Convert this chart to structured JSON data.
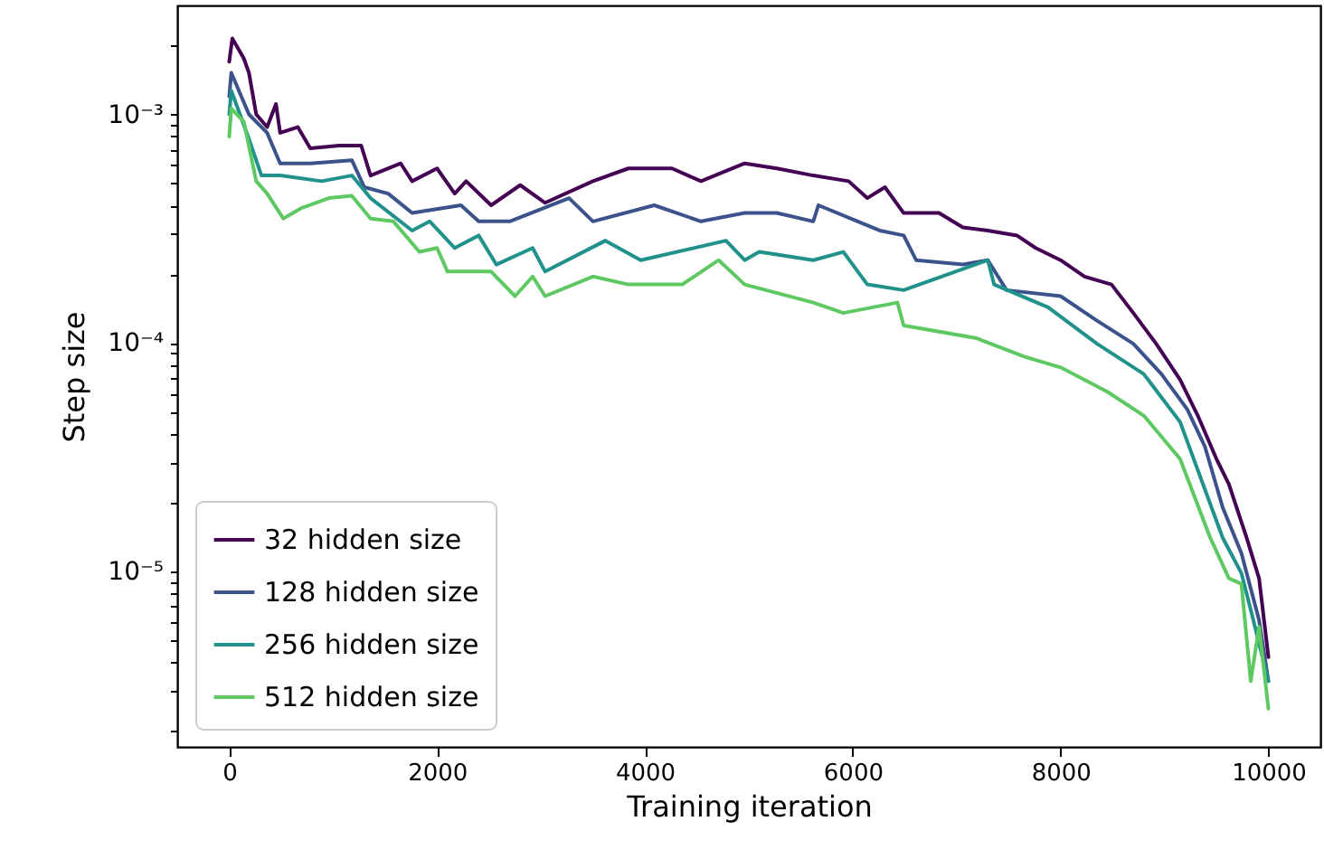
{
  "chart_data": {
    "type": "line",
    "xlabel": "Training iteration",
    "ylabel": "Step size",
    "log": "y",
    "grid": false,
    "legend": "bottom left",
    "line_style": "solid",
    "marker": "none",
    "xlim": [
      -500,
      10500
    ],
    "xticks": [
      0,
      2000,
      4000,
      6000,
      8000,
      10000
    ],
    "ylim": [
      1.7e-06,
      0.003
    ],
    "yticks": [
      {
        "value": 2e-06,
        "label": null
      },
      {
        "value": 3e-06,
        "label": null
      },
      {
        "value": 4e-06,
        "label": null
      },
      {
        "value": 5e-06,
        "label": null
      },
      {
        "value": 6e-06,
        "label": null
      },
      {
        "value": 7e-06,
        "label": null
      },
      {
        "value": 8e-06,
        "label": null
      },
      {
        "value": 9e-06,
        "label": null
      },
      {
        "value": 1e-05,
        "label": "10⁻⁵"
      },
      {
        "value": 2e-05,
        "label": null
      },
      {
        "value": 3e-05,
        "label": null
      },
      {
        "value": 4e-05,
        "label": null
      },
      {
        "value": 5e-05,
        "label": null
      },
      {
        "value": 6e-05,
        "label": null
      },
      {
        "value": 7e-05,
        "label": null
      },
      {
        "value": 8e-05,
        "label": null
      },
      {
        "value": 9e-05,
        "label": null
      },
      {
        "value": 0.0001,
        "label": "10⁻⁴"
      },
      {
        "value": 0.0002,
        "label": null
      },
      {
        "value": 0.0003,
        "label": null
      },
      {
        "value": 0.0004,
        "label": null
      },
      {
        "value": 0.0005,
        "label": null
      },
      {
        "value": 0.0006,
        "label": null
      },
      {
        "value": 0.0007,
        "label": null
      },
      {
        "value": 0.0008,
        "label": null
      },
      {
        "value": 0.0009,
        "label": null
      },
      {
        "value": 0.001,
        "label": "10⁻³"
      },
      {
        "value": 0.002,
        "label": null
      }
    ],
    "series": [
      {
        "name": "32 hidden size",
        "color": "#440154",
        "x": [
          0,
          30,
          140,
          190,
          260,
          365,
          450,
          490,
          660,
          780,
          1060,
          1270,
          1360,
          1650,
          1760,
          2000,
          2170,
          2280,
          2520,
          2800,
          3040,
          3500,
          3840,
          4260,
          4540,
          4960,
          5270,
          5620,
          5960,
          6140,
          6310,
          6490,
          6830,
          7060,
          7300,
          7580,
          7760,
          8000,
          8230,
          8490,
          8700,
          8920,
          9150,
          9320,
          9500,
          9620,
          9790,
          9910,
          10000
        ],
        "values": [
          0.0017,
          0.00215,
          0.00176,
          0.00152,
          0.001,
          0.00088,
          0.00111,
          0.00083,
          0.00088,
          0.00071,
          0.00073,
          0.00073,
          0.00054,
          0.00061,
          0.00051,
          0.00058,
          0.00045,
          0.00051,
          0.0004,
          0.00049,
          0.00041,
          0.00051,
          0.00058,
          0.00058,
          0.00051,
          0.00061,
          0.00058,
          0.00054,
          0.00051,
          0.00043,
          0.00048,
          0.00037,
          0.00037,
          0.00032,
          0.00031,
          0.000295,
          0.00026,
          0.00023,
          0.000195,
          0.00018,
          0.000135,
          9.9e-05,
          6.9e-05,
          4.8e-05,
          3.1e-05,
          2.4e-05,
          1.4e-05,
          9.3e-06,
          4.2e-06
        ]
      },
      {
        "name": "128 hidden size",
        "color": "#3b528b",
        "x": [
          0,
          20,
          190,
          365,
          490,
          780,
          1180,
          1300,
          1530,
          1760,
          2230,
          2400,
          2700,
          3270,
          3500,
          4090,
          4540,
          4960,
          5270,
          5620,
          5670,
          6260,
          6490,
          6610,
          7060,
          7300,
          7480,
          8000,
          8350,
          8700,
          8970,
          9220,
          9390,
          9560,
          9740,
          9910,
          10000
        ],
        "values": [
          0.0012,
          0.00152,
          0.001,
          0.00083,
          0.00061,
          0.00061,
          0.00063,
          0.00048,
          0.00045,
          0.00037,
          0.0004,
          0.00034,
          0.00034,
          0.00043,
          0.00034,
          0.0004,
          0.00034,
          0.00037,
          0.00037,
          0.00034,
          0.0004,
          0.00031,
          0.000295,
          0.00023,
          0.00022,
          0.00023,
          0.00017,
          0.00016,
          0.000125,
          9.9e-05,
          7.3e-05,
          5.1e-05,
          3.5e-05,
          1.9e-05,
          1.2e-05,
          6.1e-06,
          3.3e-06
        ]
      },
      {
        "name": "256 hidden size",
        "color": "#21918c",
        "x": [
          0,
          20,
          190,
          310,
          490,
          890,
          1180,
          1360,
          1760,
          1930,
          2170,
          2400,
          2570,
          2920,
          3040,
          3620,
          3960,
          4780,
          4960,
          5100,
          5620,
          5910,
          6140,
          6490,
          7300,
          7360,
          7880,
          8350,
          8800,
          9150,
          9560,
          9740,
          9840,
          10000
        ],
        "values": [
          0.001,
          0.00127,
          0.00078,
          0.00054,
          0.00054,
          0.00051,
          0.00054,
          0.00043,
          0.00031,
          0.00034,
          0.00026,
          0.000295,
          0.00022,
          0.00026,
          0.000205,
          0.00028,
          0.00023,
          0.00028,
          0.00023,
          0.00025,
          0.00023,
          0.00025,
          0.00018,
          0.00017,
          0.00023,
          0.00018,
          0.000143,
          9.9e-05,
          7.3e-05,
          4.5e-05,
          1.4e-05,
          9.8e-06,
          6.5e-06,
          3.3e-06
        ]
      },
      {
        "name": "512 hidden size",
        "color": "#5ec962",
        "x": [
          0,
          20,
          140,
          260,
          365,
          520,
          700,
          960,
          1180,
          1360,
          1580,
          1830,
          2000,
          2100,
          2520,
          2750,
          2920,
          3040,
          3500,
          3840,
          4360,
          4710,
          4960,
          5620,
          5910,
          6430,
          6490,
          7180,
          7650,
          8000,
          8450,
          8800,
          9150,
          9440,
          9620,
          9740,
          9830,
          9910,
          10000
        ],
        "values": [
          0.0008,
          0.00106,
          0.00093,
          0.00051,
          0.00045,
          0.00035,
          0.00039,
          0.00043,
          0.00044,
          0.00035,
          0.00034,
          0.00025,
          0.00026,
          0.000205,
          0.000205,
          0.00016,
          0.000195,
          0.00016,
          0.000195,
          0.00018,
          0.00018,
          0.00023,
          0.00018,
          0.00015,
          0.000135,
          0.00015,
          0.000119,
          0.000105,
          8.7e-05,
          7.8e-05,
          6.1e-05,
          4.8e-05,
          3.1e-05,
          1.4e-05,
          9.3e-06,
          8.8e-06,
          3.3e-06,
          5.7e-06,
          2.5e-06
        ]
      }
    ]
  }
}
